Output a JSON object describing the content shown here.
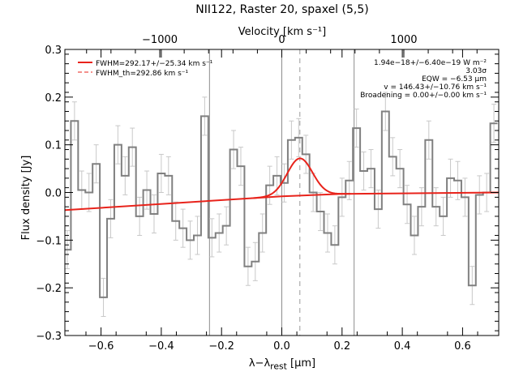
{
  "chart_data": {
    "type": "line",
    "title": "NII122, Raster 20, spaxel (5,5)",
    "xlabel_html": "λ−λ<sub>rest</sub> [μm]",
    "xlabel": "λ−λrest [μm]",
    "ylabel": "Flux density [Jy]",
    "top_axis": {
      "label": "Velocity [km s⁻¹]",
      "ticks": [
        {
          "label": "−1000",
          "wavelength": -0.405
        },
        {
          "label": "0",
          "wavelength": 0.0
        },
        {
          "label": "1000",
          "wavelength": 0.405
        }
      ]
    },
    "xlim": [
      -0.72,
      0.72
    ],
    "ylim": [
      -0.3,
      0.3
    ],
    "xticks": [
      -0.6,
      -0.4,
      -0.2,
      0.0,
      0.2,
      0.4,
      0.6
    ],
    "xtick_labels": [
      "−0.6",
      "−0.4",
      "−0.2",
      "0.0",
      "0.2",
      "0.4",
      "0.6"
    ],
    "yticks": [
      -0.3,
      -0.2,
      -0.1,
      0.0,
      0.1,
      0.2,
      0.3
    ],
    "ytick_labels": [
      "−0.3",
      "−0.2",
      "−0.1",
      "0.0",
      "0.1",
      "0.2",
      "0.3"
    ],
    "legend": {
      "placement": "top-left",
      "entries": [
        {
          "label": "FWHM=292.17+/−25.34 km s⁻¹",
          "style": "solid",
          "color": "#e8231b"
        },
        {
          "label": "FWHM_th=292.86 km s⁻¹",
          "style": "dashed",
          "color": "#e8231b"
        }
      ]
    },
    "annotations": [
      "1.94e−18+/−6.40e−19 W m⁻²",
      "3.03σ",
      "EQW = −6.53 μm",
      "v = 146.43+/−10.76 km s⁻¹",
      "Broadening = 0.00+/−0.00 km s⁻¹"
    ],
    "reference_lines": {
      "solid_gray": [
        -0.24,
        0.0,
        0.24
      ],
      "dashed_gray": [
        0.06
      ]
    },
    "spectrum": {
      "name": "",
      "color": "#808080",
      "bin_width": 0.024,
      "x": [
        -0.712,
        -0.688,
        -0.664,
        -0.64,
        -0.616,
        -0.592,
        -0.568,
        -0.544,
        -0.52,
        -0.496,
        -0.472,
        -0.448,
        -0.424,
        -0.4,
        -0.376,
        -0.352,
        -0.328,
        -0.304,
        -0.28,
        -0.256,
        -0.232,
        -0.208,
        -0.184,
        -0.16,
        -0.136,
        -0.112,
        -0.088,
        -0.064,
        -0.04,
        -0.016,
        0.008,
        0.032,
        0.056,
        0.08,
        0.104,
        0.128,
        0.152,
        0.176,
        0.2,
        0.224,
        0.248,
        0.272,
        0.296,
        0.32,
        0.344,
        0.368,
        0.392,
        0.416,
        0.44,
        0.464,
        0.488,
        0.512,
        0.536,
        0.56,
        0.584,
        0.608,
        0.632,
        0.656,
        0.68,
        0.704
      ],
      "y": [
        -0.12,
        0.15,
        0.005,
        0.0,
        0.06,
        -0.22,
        -0.055,
        0.1,
        0.035,
        0.095,
        -0.05,
        0.005,
        -0.045,
        0.04,
        0.035,
        -0.06,
        -0.075,
        -0.1,
        -0.09,
        0.16,
        -0.095,
        -0.085,
        -0.07,
        0.09,
        0.055,
        -0.155,
        -0.145,
        -0.085,
        0.015,
        0.035,
        0.02,
        0.11,
        0.115,
        0.08,
        0.0,
        -0.04,
        -0.085,
        -0.11,
        -0.01,
        0.025,
        0.135,
        0.045,
        0.05,
        -0.035,
        0.17,
        0.075,
        0.05,
        -0.025,
        -0.09,
        -0.03,
        0.11,
        -0.03,
        -0.05,
        0.03,
        0.025,
        -0.01,
        -0.195,
        -0.005,
        0.0,
        0.145
      ],
      "yerr": [
        0.04,
        0.04,
        0.04,
        0.04,
        0.04,
        0.04,
        0.04,
        0.04,
        0.04,
        0.04,
        0.04,
        0.04,
        0.04,
        0.04,
        0.04,
        0.04,
        0.04,
        0.04,
        0.04,
        0.04,
        0.04,
        0.04,
        0.04,
        0.04,
        0.04,
        0.04,
        0.04,
        0.04,
        0.04,
        0.04,
        0.04,
        0.04,
        0.04,
        0.04,
        0.04,
        0.04,
        0.04,
        0.04,
        0.04,
        0.04,
        0.04,
        0.04,
        0.04,
        0.04,
        0.04,
        0.04,
        0.04,
        0.04,
        0.04,
        0.04,
        0.04,
        0.04,
        0.04,
        0.04,
        0.04,
        0.04,
        0.04,
        0.04,
        0.04,
        0.04
      ]
    },
    "baseline": {
      "name": "",
      "color": "#e8231b",
      "x": [
        -0.72,
        0.0,
        0.2,
        0.72
      ],
      "y": [
        -0.037,
        -0.008,
        -0.003,
        0.0
      ]
    },
    "gaussian_fit": {
      "name": "",
      "color": "#e8231b",
      "center": 0.06,
      "amplitude": 0.078,
      "sigma": 0.042,
      "xrange": [
        -0.1,
        0.23
      ]
    }
  }
}
